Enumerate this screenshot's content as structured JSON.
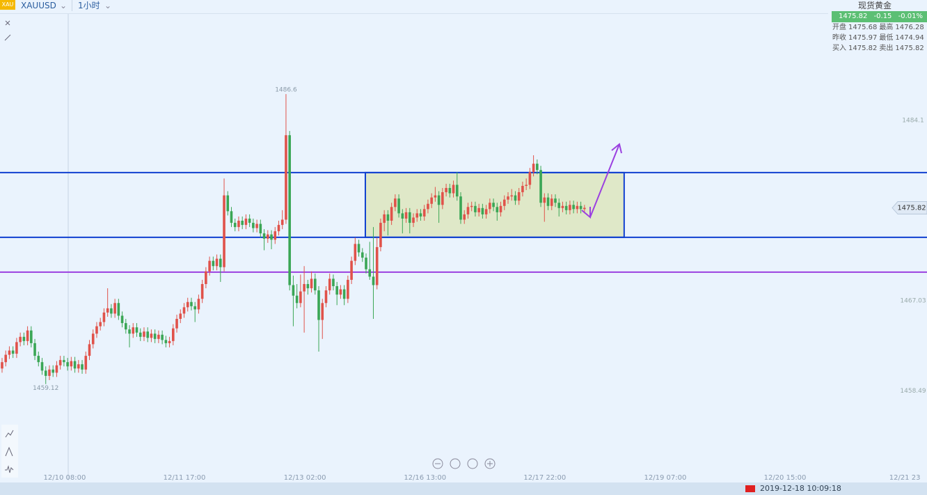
{
  "toolbar": {
    "logo": "XAU",
    "symbol": "XAUUSD",
    "interval": "1小时"
  },
  "quote_panel": {
    "title": "现货黄金",
    "price": 1475.82,
    "change": -0.15,
    "change_pct": "-0.01%",
    "rows": [
      [
        "开盘",
        1475.68,
        "最高",
        1476.28
      ],
      [
        "昨收",
        1475.97,
        "最低",
        1474.94
      ],
      [
        "买入",
        1475.82,
        "卖出",
        1475.82
      ]
    ]
  },
  "status_bar": {
    "datetime": "2019-12-18 10:09:18"
  },
  "chart_data": {
    "type": "candlestick",
    "up_color": "#e0524a",
    "down_color": "#3aa655",
    "xlim": [
      -0.57,
      254.1
    ],
    "ylim": [
      1450.0,
      1494.19
    ],
    "yticks": [
      1484.1,
      1467.03,
      1458.49
    ],
    "xticks": [
      {
        "value": 17.2,
        "label": "12/10 08:00"
      },
      {
        "value": 50.1,
        "label": "12/11 17:00"
      },
      {
        "value": 83.2,
        "label": "12/13 02:00"
      },
      {
        "value": 116.2,
        "label": "12/16 13:00"
      },
      {
        "value": 149.1,
        "label": "12/17 22:00"
      },
      {
        "value": 182.2,
        "label": "12/19 07:00"
      },
      {
        "value": 215.1,
        "label": "12/20 15:00"
      },
      {
        "value": 248.0,
        "label": "12/21 23"
      }
    ],
    "last": 1475.82,
    "extremes": [
      {
        "x": 78,
        "value": 1486.6
      },
      {
        "x": 12,
        "value": 1459.12
      }
    ],
    "levels": [
      {
        "value": 1479.16,
        "color": "#1040d0"
      },
      {
        "value": 1473.03,
        "color": "#1040d0"
      },
      {
        "value": 1469.73,
        "color": "#9b40e0"
      }
    ],
    "range_box": {
      "x": [
        99.8,
        170.9
      ],
      "y": [
        1473.03,
        1479.16
      ],
      "color": "#1040d0",
      "fill": "#dfe8c8"
    },
    "ohlc": [
      [
        1460.6,
        1461.6,
        1460.2,
        1461.2
      ],
      [
        1461.2,
        1462.3,
        1460.8,
        1461.9
      ],
      [
        1461.9,
        1462.7,
        1461.5,
        1462.3
      ],
      [
        1462.3,
        1462.7,
        1461.6,
        1462.0
      ],
      [
        1462.0,
        1463.5,
        1461.6,
        1463.1
      ],
      [
        1463.1,
        1464.0,
        1462.7,
        1463.6
      ],
      [
        1463.6,
        1464.0,
        1462.8,
        1463.2
      ],
      [
        1463.2,
        1464.6,
        1462.8,
        1464.2
      ],
      [
        1464.2,
        1464.6,
        1462.6,
        1463.0
      ],
      [
        1463.0,
        1463.4,
        1461.4,
        1461.8
      ],
      [
        1461.8,
        1462.2,
        1460.8,
        1461.2
      ],
      [
        1461.2,
        1461.6,
        1460.0,
        1460.4
      ],
      [
        1460.4,
        1460.8,
        1459.12,
        1459.9
      ],
      [
        1459.9,
        1460.9,
        1459.5,
        1460.5
      ],
      [
        1460.5,
        1460.9,
        1459.8,
        1460.2
      ],
      [
        1460.2,
        1461.3,
        1459.8,
        1460.9
      ],
      [
        1460.9,
        1461.8,
        1460.5,
        1461.4
      ],
      [
        1461.4,
        1461.8,
        1460.8,
        1461.2
      ],
      [
        1461.2,
        1461.6,
        1460.4,
        1460.8
      ],
      [
        1460.8,
        1461.7,
        1460.4,
        1461.3
      ],
      [
        1461.3,
        1461.7,
        1460.2,
        1460.6
      ],
      [
        1460.6,
        1461.4,
        1460.2,
        1461.0
      ],
      [
        1461.0,
        1461.4,
        1460.1,
        1460.5
      ],
      [
        1460.5,
        1462.2,
        1460.1,
        1461.8
      ],
      [
        1461.8,
        1463.3,
        1461.4,
        1462.9
      ],
      [
        1462.9,
        1464.3,
        1462.5,
        1463.9
      ],
      [
        1463.9,
        1465.0,
        1463.5,
        1464.6
      ],
      [
        1464.6,
        1465.4,
        1464.2,
        1465.0
      ],
      [
        1465.0,
        1466.3,
        1464.6,
        1465.9
      ],
      [
        1465.9,
        1468.2,
        1465.5,
        1466.3
      ],
      [
        1466.3,
        1466.7,
        1465.4,
        1465.8
      ],
      [
        1465.8,
        1467.2,
        1465.4,
        1466.8
      ],
      [
        1466.8,
        1467.2,
        1465.2,
        1465.6
      ],
      [
        1465.6,
        1466.0,
        1464.5,
        1464.9
      ],
      [
        1464.9,
        1465.3,
        1463.9,
        1464.3
      ],
      [
        1464.3,
        1464.7,
        1462.6,
        1463.9
      ],
      [
        1463.9,
        1464.9,
        1463.5,
        1464.5
      ],
      [
        1464.5,
        1464.9,
        1463.6,
        1464.0
      ],
      [
        1464.0,
        1464.4,
        1463.2,
        1463.6
      ],
      [
        1463.6,
        1464.5,
        1463.2,
        1464.1
      ],
      [
        1464.1,
        1464.5,
        1463.1,
        1463.5
      ],
      [
        1463.5,
        1464.3,
        1463.1,
        1463.9
      ],
      [
        1463.9,
        1464.3,
        1463.0,
        1463.4
      ],
      [
        1463.4,
        1464.2,
        1463.0,
        1463.8
      ],
      [
        1463.8,
        1464.2,
        1462.9,
        1463.3
      ],
      [
        1463.3,
        1463.7,
        1462.6,
        1463.0
      ],
      [
        1463.0,
        1463.6,
        1462.6,
        1463.2
      ],
      [
        1463.2,
        1464.8,
        1462.8,
        1464.4
      ],
      [
        1464.4,
        1465.7,
        1464.0,
        1465.3
      ],
      [
        1465.3,
        1466.2,
        1464.9,
        1465.8
      ],
      [
        1465.8,
        1466.8,
        1465.4,
        1466.4
      ],
      [
        1466.4,
        1467.3,
        1466.0,
        1466.9
      ],
      [
        1466.9,
        1467.3,
        1466.1,
        1466.5
      ],
      [
        1466.5,
        1466.9,
        1465.0,
        1466.2
      ],
      [
        1466.2,
        1467.6,
        1465.8,
        1467.2
      ],
      [
        1467.2,
        1469.0,
        1466.8,
        1468.6
      ],
      [
        1468.6,
        1470.2,
        1468.2,
        1469.8
      ],
      [
        1469.8,
        1471.2,
        1469.4,
        1470.8
      ],
      [
        1470.8,
        1471.2,
        1469.9,
        1470.3
      ],
      [
        1470.3,
        1471.4,
        1469.9,
        1471.0
      ],
      [
        1471.0,
        1471.4,
        1468.8,
        1470.2
      ],
      [
        1470.2,
        1478.6,
        1469.8,
        1477.0
      ],
      [
        1477.0,
        1477.4,
        1475.1,
        1475.5
      ],
      [
        1475.5,
        1475.9,
        1474.0,
        1474.4
      ],
      [
        1474.4,
        1474.8,
        1473.6,
        1474.0
      ],
      [
        1474.0,
        1475.0,
        1473.6,
        1474.6
      ],
      [
        1474.6,
        1475.0,
        1473.8,
        1474.2
      ],
      [
        1474.2,
        1475.2,
        1473.8,
        1474.8
      ],
      [
        1474.8,
        1475.2,
        1474.0,
        1474.4
      ],
      [
        1474.4,
        1474.8,
        1473.5,
        1473.9
      ],
      [
        1473.9,
        1474.7,
        1473.5,
        1474.3
      ],
      [
        1474.3,
        1474.7,
        1473.0,
        1473.4
      ],
      [
        1473.4,
        1473.8,
        1471.8,
        1472.9
      ],
      [
        1472.9,
        1473.7,
        1472.5,
        1473.3
      ],
      [
        1473.3,
        1473.7,
        1471.9,
        1472.8
      ],
      [
        1472.8,
        1474.0,
        1472.4,
        1473.6
      ],
      [
        1473.6,
        1474.6,
        1473.2,
        1474.2
      ],
      [
        1474.2,
        1475.6,
        1473.8,
        1474.7
      ],
      [
        1474.7,
        1486.6,
        1474.3,
        1482.7
      ],
      [
        1482.7,
        1483.1,
        1468.0,
        1468.5
      ],
      [
        1468.5,
        1469.4,
        1464.6,
        1467.5
      ],
      [
        1467.5,
        1468.6,
        1466.3,
        1466.8
      ],
      [
        1466.8,
        1469.5,
        1466.4,
        1467.9
      ],
      [
        1467.9,
        1470.3,
        1464.0,
        1468.6
      ],
      [
        1468.6,
        1469.0,
        1467.6,
        1468.2
      ],
      [
        1468.2,
        1469.8,
        1467.8,
        1469.1
      ],
      [
        1469.1,
        1469.6,
        1467.6,
        1468.0
      ],
      [
        1468.0,
        1468.4,
        1462.2,
        1465.2
      ],
      [
        1465.2,
        1467.2,
        1463.4,
        1466.8
      ],
      [
        1466.8,
        1468.4,
        1466.4,
        1468.0
      ],
      [
        1468.0,
        1469.6,
        1467.6,
        1469.1
      ],
      [
        1469.1,
        1469.5,
        1468.0,
        1468.4
      ],
      [
        1468.4,
        1468.8,
        1466.6,
        1467.6
      ],
      [
        1467.6,
        1468.5,
        1467.2,
        1468.1
      ],
      [
        1468.1,
        1468.5,
        1466.6,
        1467.2
      ],
      [
        1467.2,
        1469.4,
        1466.8,
        1469.0
      ],
      [
        1469.0,
        1471.2,
        1468.6,
        1470.8
      ],
      [
        1470.8,
        1473.0,
        1470.4,
        1472.4
      ],
      [
        1472.4,
        1472.8,
        1471.2,
        1471.6
      ],
      [
        1471.6,
        1472.0,
        1470.7,
        1471.1
      ],
      [
        1471.1,
        1471.5,
        1469.6,
        1470.0
      ],
      [
        1470.0,
        1472.6,
        1469.0,
        1469.3
      ],
      [
        1469.3,
        1474.0,
        1465.3,
        1468.5
      ],
      [
        1468.5,
        1473.0,
        1468.1,
        1472.1
      ],
      [
        1472.1,
        1474.8,
        1471.7,
        1474.4
      ],
      [
        1474.4,
        1475.6,
        1473.6,
        1475.2
      ],
      [
        1475.2,
        1475.6,
        1473.2,
        1474.6
      ],
      [
        1474.6,
        1476.3,
        1474.2,
        1475.9
      ],
      [
        1475.9,
        1477.1,
        1475.5,
        1476.7
      ],
      [
        1476.7,
        1477.1,
        1474.9,
        1475.3
      ],
      [
        1475.3,
        1475.7,
        1473.4,
        1474.8
      ],
      [
        1474.8,
        1475.8,
        1474.4,
        1475.4
      ],
      [
        1475.4,
        1475.8,
        1473.4,
        1474.4
      ],
      [
        1474.4,
        1475.3,
        1474.0,
        1474.9
      ],
      [
        1474.9,
        1475.7,
        1474.5,
        1475.3
      ],
      [
        1475.3,
        1475.7,
        1474.6,
        1475.0
      ],
      [
        1475.0,
        1476.1,
        1474.6,
        1475.7
      ],
      [
        1475.7,
        1476.6,
        1475.3,
        1476.2
      ],
      [
        1476.2,
        1477.2,
        1475.8,
        1476.8
      ],
      [
        1476.8,
        1477.8,
        1476.4,
        1477.0
      ],
      [
        1477.0,
        1477.4,
        1474.4,
        1476.1
      ],
      [
        1476.1,
        1477.7,
        1475.7,
        1477.3
      ],
      [
        1477.3,
        1478.1,
        1476.9,
        1477.7
      ],
      [
        1477.7,
        1478.1,
        1476.8,
        1477.2
      ],
      [
        1477.2,
        1478.4,
        1476.8,
        1478.0
      ],
      [
        1478.0,
        1479.2,
        1476.5,
        1476.9
      ],
      [
        1476.9,
        1477.3,
        1474.3,
        1474.7
      ],
      [
        1474.7,
        1475.6,
        1474.3,
        1475.2
      ],
      [
        1475.2,
        1476.3,
        1474.8,
        1475.9
      ],
      [
        1475.9,
        1476.4,
        1475.5,
        1476.0
      ],
      [
        1476.0,
        1476.4,
        1475.0,
        1475.4
      ],
      [
        1475.4,
        1476.2,
        1475.0,
        1475.8
      ],
      [
        1475.8,
        1476.2,
        1474.8,
        1475.2
      ],
      [
        1475.2,
        1476.1,
        1474.8,
        1475.7
      ],
      [
        1475.7,
        1476.7,
        1475.3,
        1476.3
      ],
      [
        1476.3,
        1476.7,
        1475.5,
        1475.9
      ],
      [
        1475.9,
        1476.3,
        1474.6,
        1475.4
      ],
      [
        1475.4,
        1476.4,
        1475.0,
        1476.0
      ],
      [
        1476.0,
        1477.0,
        1475.6,
        1476.6
      ],
      [
        1476.6,
        1477.3,
        1476.2,
        1476.9
      ],
      [
        1476.9,
        1477.6,
        1476.5,
        1477.0
      ],
      [
        1477.0,
        1477.4,
        1476.1,
        1476.5
      ],
      [
        1476.5,
        1477.7,
        1476.1,
        1477.3
      ],
      [
        1477.3,
        1478.3,
        1476.9,
        1477.9
      ],
      [
        1477.9,
        1478.6,
        1477.5,
        1478.0
      ],
      [
        1478.0,
        1479.6,
        1477.6,
        1479.2
      ],
      [
        1479.2,
        1480.8,
        1478.8,
        1480.0
      ],
      [
        1480.0,
        1480.4,
        1479.0,
        1479.4
      ],
      [
        1479.4,
        1479.8,
        1475.9,
        1476.3
      ],
      [
        1476.3,
        1477.2,
        1474.5,
        1476.8
      ],
      [
        1476.8,
        1477.2,
        1475.6,
        1476.0
      ],
      [
        1476.0,
        1477.1,
        1475.6,
        1476.7
      ],
      [
        1476.7,
        1477.1,
        1475.9,
        1476.3
      ],
      [
        1476.3,
        1476.7,
        1475.0,
        1475.8
      ],
      [
        1475.8,
        1476.4,
        1475.4,
        1476.0
      ],
      [
        1476.0,
        1476.4,
        1475.2,
        1475.6
      ],
      [
        1475.6,
        1476.5,
        1475.2,
        1476.1
      ],
      [
        1476.1,
        1476.5,
        1475.3,
        1475.7
      ],
      [
        1475.7,
        1476.4,
        1475.3,
        1476.0
      ],
      [
        1476.0,
        1476.4,
        1475.3,
        1475.7
      ],
      [
        1475.7,
        1476.1,
        1475.3,
        1475.82
      ]
    ]
  }
}
